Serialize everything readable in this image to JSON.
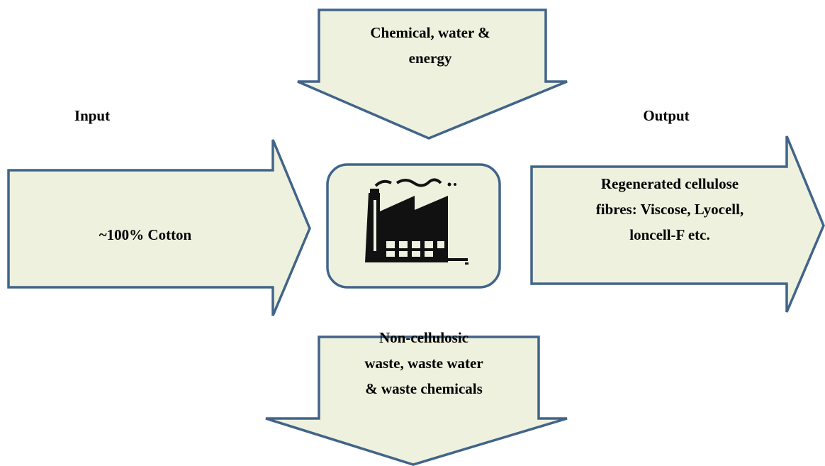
{
  "headings": {
    "input": "Input",
    "output": "Output"
  },
  "nodes": [
    {
      "lines": [
        "Chemical, water &",
        "energy"
      ]
    },
    {
      "lines": [
        "~100% Cotton"
      ]
    },
    {
      "lines": [
        "Regenerated cellulose",
        "fibres: Viscose, Lyocell,",
        "loncell-F etc."
      ]
    },
    {
      "lines": [
        "Non-cellulosic",
        "waste, waste water",
        "& waste chemicals"
      ]
    }
  ]
}
